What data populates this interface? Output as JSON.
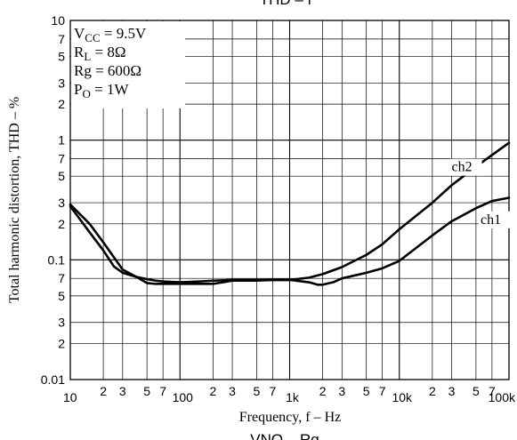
{
  "chart_data": {
    "type": "line",
    "title": "THD – f",
    "footer": "VNO – Rg",
    "xlabel": "Frequency, f  –  Hz",
    "ylabel": "Total harmonic distortion, THD  –  %",
    "x_scale": "log",
    "y_scale": "log",
    "xlim": [
      10,
      100000
    ],
    "ylim": [
      0.01,
      10
    ],
    "grid": true,
    "x_tick_labels": [
      {
        "v": 10,
        "t": "10"
      },
      {
        "v": 20,
        "t": "2"
      },
      {
        "v": 30,
        "t": "3"
      },
      {
        "v": 50,
        "t": "5"
      },
      {
        "v": 70,
        "t": "7"
      },
      {
        "v": 100,
        "t": "100"
      },
      {
        "v": 200,
        "t": "2"
      },
      {
        "v": 300,
        "t": "3"
      },
      {
        "v": 500,
        "t": "5"
      },
      {
        "v": 700,
        "t": "7"
      },
      {
        "v": 1000,
        "t": "1k"
      },
      {
        "v": 2000,
        "t": "2"
      },
      {
        "v": 3000,
        "t": "3"
      },
      {
        "v": 5000,
        "t": "5"
      },
      {
        "v": 7000,
        "t": "7"
      },
      {
        "v": 10000,
        "t": "10k"
      },
      {
        "v": 20000,
        "t": "2"
      },
      {
        "v": 30000,
        "t": "3"
      },
      {
        "v": 50000,
        "t": "5"
      },
      {
        "v": 70000,
        "t": "7"
      },
      {
        "v": 100000,
        "t": "100k"
      }
    ],
    "y_tick_labels": [
      {
        "v": 10,
        "t": "10"
      },
      {
        "v": 7,
        "t": "7"
      },
      {
        "v": 5,
        "t": "5"
      },
      {
        "v": 3,
        "t": "3"
      },
      {
        "v": 2,
        "t": "2"
      },
      {
        "v": 1,
        "t": "1"
      },
      {
        "v": 0.7,
        "t": "7"
      },
      {
        "v": 0.5,
        "t": "5"
      },
      {
        "v": 0.3,
        "t": "3"
      },
      {
        "v": 0.2,
        "t": "2"
      },
      {
        "v": 0.1,
        "t": "0.1"
      },
      {
        "v": 0.07,
        "t": "7"
      },
      {
        "v": 0.05,
        "t": "5"
      },
      {
        "v": 0.03,
        "t": "3"
      },
      {
        "v": 0.02,
        "t": "2"
      },
      {
        "v": 0.01,
        "t": "0.01"
      }
    ],
    "conditions": [
      {
        "sym": "V",
        "sub": "CC",
        "rest": " = 9.5V"
      },
      {
        "sym": "R",
        "sub": "L",
        "rest": " = 8Ω"
      },
      {
        "sym": "Rg",
        "sub": "",
        "rest": " = 600Ω"
      },
      {
        "sym": "P",
        "sub": "O",
        "rest": " = 1W"
      }
    ],
    "series": [
      {
        "name": "ch2",
        "x": [
          10,
          15,
          20,
          25,
          30,
          40,
          50,
          60,
          70,
          100,
          150,
          200,
          300,
          500,
          700,
          1000,
          1500,
          2000,
          3000,
          5000,
          7000,
          10000,
          20000,
          30000,
          50000,
          70000,
          100000
        ],
        "y": [
          0.29,
          0.2,
          0.14,
          0.105,
          0.083,
          0.072,
          0.069,
          0.067,
          0.066,
          0.065,
          0.066,
          0.067,
          0.068,
          0.068,
          0.068,
          0.068,
          0.071,
          0.076,
          0.087,
          0.11,
          0.135,
          0.18,
          0.3,
          0.42,
          0.6,
          0.75,
          0.95
        ]
      },
      {
        "name": "ch1",
        "x": [
          10,
          15,
          20,
          25,
          30,
          40,
          50,
          60,
          70,
          100,
          150,
          200,
          300,
          500,
          700,
          1000,
          1500,
          1800,
          2000,
          2500,
          3000,
          5000,
          7000,
          10000,
          20000,
          30000,
          50000,
          70000,
          100000
        ],
        "y": [
          0.28,
          0.17,
          0.12,
          0.088,
          0.078,
          0.072,
          0.064,
          0.063,
          0.063,
          0.063,
          0.063,
          0.063,
          0.067,
          0.067,
          0.068,
          0.068,
          0.065,
          0.062,
          0.062,
          0.065,
          0.07,
          0.078,
          0.085,
          0.098,
          0.16,
          0.21,
          0.27,
          0.31,
          0.33
        ]
      }
    ],
    "series_labels": [
      {
        "text": "ch2",
        "x": 30000,
        "y": 0.55
      },
      {
        "text": "ch1",
        "x": 55000,
        "y": 0.2
      }
    ]
  }
}
